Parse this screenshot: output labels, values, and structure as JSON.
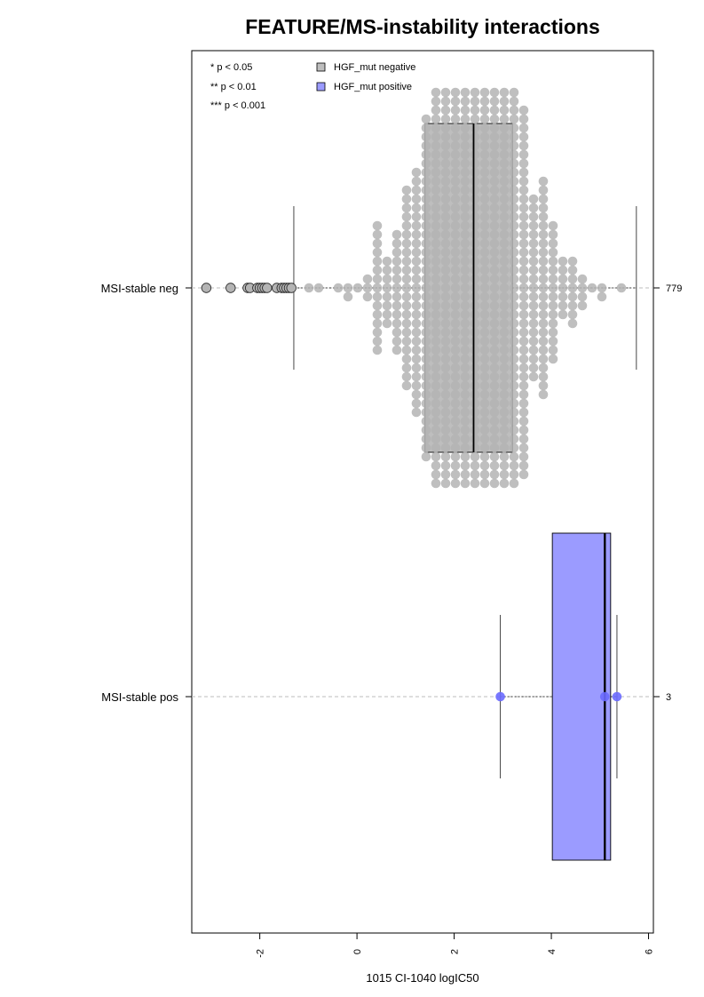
{
  "chart_data": {
    "type": "box",
    "orientation": "horizontal",
    "title": "FEATURE/MS-instability interactions",
    "xlabel": "1015 CI-1040 logIC50",
    "ylabel": "",
    "xlim": [
      -3.4,
      6.1
    ],
    "x_ticks": [
      -2,
      0,
      2,
      4,
      6
    ],
    "x_tick_labels": [
      "-2",
      "0",
      "2",
      "4",
      "6"
    ],
    "grid": false,
    "significance_legend": [
      "* p < 0.05",
      "** p < 0.01",
      "*** p < 0.001"
    ],
    "legend": [
      {
        "label": "HGF_mut negative",
        "color": "#bebebe"
      },
      {
        "label": "HGF_mut positive",
        "color": "#9b9bff"
      }
    ],
    "groups": [
      {
        "label": "MSI-stable neg",
        "count": "779",
        "color": "#bebebe",
        "point_color": "#b4b4b4",
        "whisker_low": -1.3,
        "q1": 1.4,
        "median": 2.4,
        "q3": 3.2,
        "whisker_high": 5.75,
        "outliers": [
          -3.1,
          -2.6,
          -2.25,
          -2.2,
          -2.05,
          -2.0,
          -1.95,
          -1.9,
          -1.85,
          -1.65,
          -1.55,
          -1.5,
          -1.45,
          -1.4,
          -1.35
        ]
      },
      {
        "label": "MSI-stable pos",
        "count": "3",
        "color": "#9b9bff",
        "point_color": "#6a6aff",
        "whisker_low": 2.95,
        "q1": 4.02,
        "median": 5.1,
        "q3": 5.22,
        "whisker_high": 5.35,
        "points": [
          2.95,
          5.1,
          5.35
        ]
      }
    ]
  }
}
